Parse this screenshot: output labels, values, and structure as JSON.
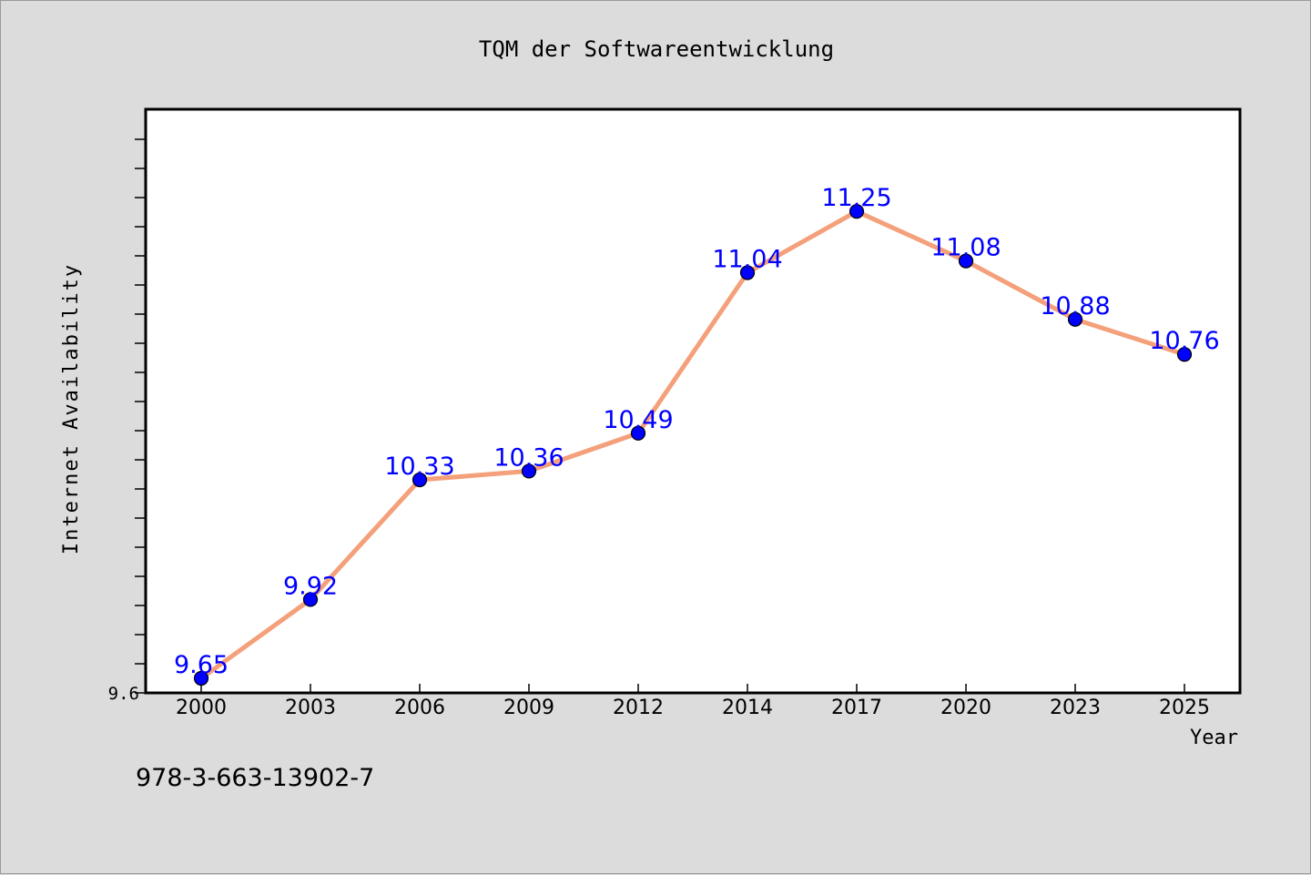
{
  "chart_data": {
    "type": "line",
    "title": "TQM der Softwareentwicklung",
    "xlabel": "Year",
    "ylabel": "Internet Availability",
    "x": [
      "2000",
      "2003",
      "2006",
      "2009",
      "2012",
      "2014",
      "2017",
      "2020",
      "2023",
      "2025"
    ],
    "series": [
      {
        "values": [
          9.65,
          9.92,
          10.33,
          10.36,
          10.49,
          11.04,
          11.25,
          11.08,
          10.88,
          10.76
        ],
        "color": "#f4a07a",
        "marker_color": "#0000ff",
        "label_color": "#0000ff"
      }
    ],
    "ylim": [
      9.6,
      11.6
    ],
    "ytick_label": "9.6",
    "grid": false,
    "legend": "none"
  },
  "footer": {
    "isbn": "978-3-663-13902-7"
  }
}
